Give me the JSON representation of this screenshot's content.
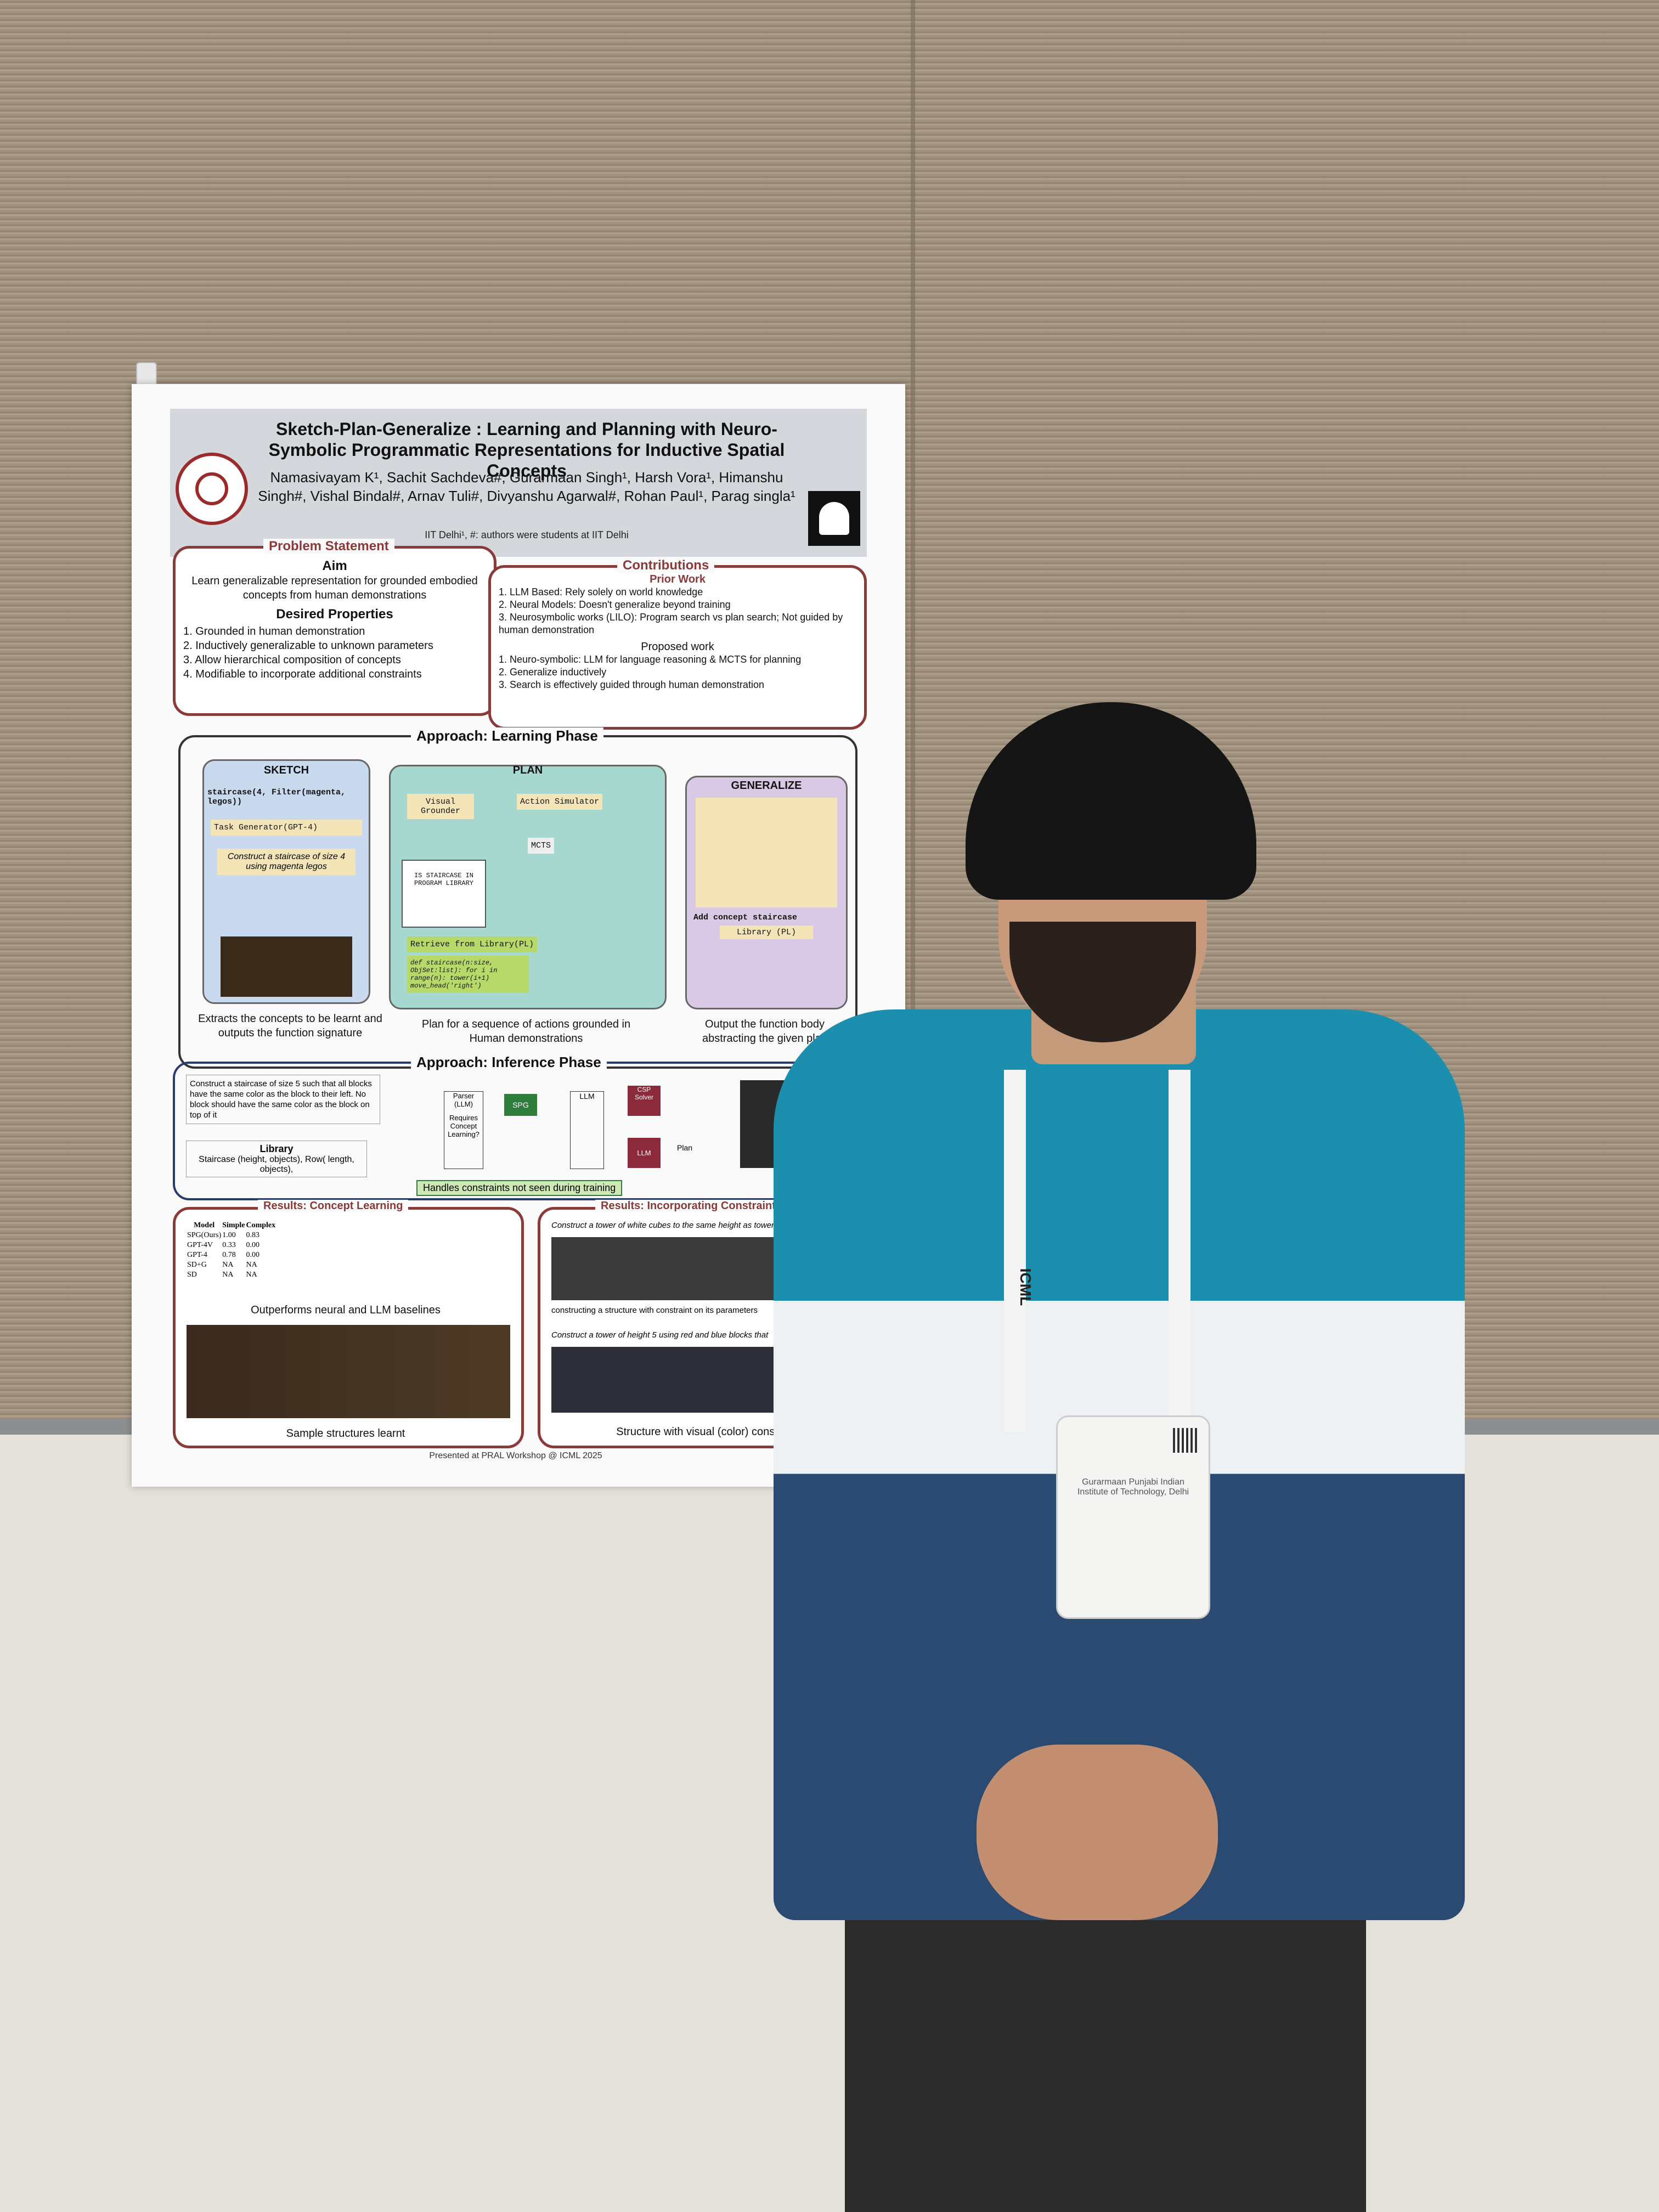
{
  "poster": {
    "title": "Sketch-Plan-Generalize : Learning and Planning with Neuro-Symbolic Programmatic Representations for Inductive Spatial Concepts",
    "authors": "Namasivayam K¹, Sachit Sachdeva#, Gurarmaan Singh¹, Harsh Vora¹, Himanshu Singh#, Vishal Bindal#, Arnav Tuli#, Divyanshu Agarwal#, Rohan Paul¹, Parag singla¹",
    "affiliation": "IIT Delhi¹, #: authors were students at IIT Delhi",
    "problem": {
      "heading": "Problem Statement",
      "aim_title": "Aim",
      "aim_text": "Learn generalizable representation for grounded embodied concepts from human demonstrations",
      "props_title": "Desired Properties",
      "props": [
        "1. Grounded in human demonstration",
        "2. Inductively generalizable to unknown parameters",
        "3. Allow hierarchical composition of concepts",
        "4. Modifiable to incorporate additional constraints"
      ]
    },
    "contributions": {
      "heading": "Contributions",
      "prior_title": "Prior Work",
      "prior": [
        "1. LLM Based: Rely solely on world knowledge",
        "2. Neural Models: Doesn't generalize beyond training",
        "3. Neurosymbolic works (LILO): Program search vs plan search; Not guided by human demonstration"
      ],
      "proposed_title": "Proposed work",
      "proposed": [
        "1. Neuro-symbolic: LLM for language reasoning & MCTS for planning",
        "2. Generalize inductively",
        "3. Search is effectively guided through human demonstration"
      ]
    },
    "learning": {
      "heading": "Approach: Learning Phase",
      "sketch_label": "SKETCH",
      "sketch_code": "staircase(4, Filter(magenta, legos))",
      "task_gen": "Task Generator(GPT-4)",
      "instruction": "Construct a staircase of size 4 using magenta legos",
      "plan_label": "PLAN",
      "visual_grounder": "Visual Grounder",
      "action_sim": "Action Simulator",
      "mcts": "MCTS",
      "is_staircase": "IS STAIRCASE IN PROGRAM LIBRARY",
      "retrieve": "Retrieve from Library(PL)",
      "code": "def staircase(n:size, ObjSet:list): for i in range(n): tower(i+1) move_head('right')",
      "generalize_label": "GENERALIZE",
      "add_concept": "Add concept staircase",
      "library": "Library (PL)",
      "cap_sketch": "Extracts the concepts to be learnt and outputs the function signature",
      "cap_plan": "Plan for a sequence of actions grounded in Human demonstrations",
      "cap_gen": "Output the function body abstracting the given plan"
    },
    "inference": {
      "heading": "Approach: Inference Phase",
      "instruction": "Construct a staircase of size 5 such that all blocks have the same color as the block to their left. No block should have the same color as the block on top of it",
      "library_title": "Library",
      "library_items": "Staircase (height, objects), Row( length, objects),",
      "parser": "Parser (LLM)",
      "requires_concept": "Requires Concept Learning?",
      "spg": "SPG",
      "llm": "LLM",
      "csp": "CSP Solver",
      "plan": "Plan",
      "note": "Handles constraints not seen during training"
    },
    "results_concept": {
      "heading": "Results: Concept Learning",
      "cols": [
        "Model",
        "Simple",
        "Complex"
      ],
      "rows": [
        [
          "SPG(Ours)",
          "1.00",
          "0.83"
        ],
        [
          "GPT-4V",
          "0.33",
          "0.00"
        ],
        [
          "GPT-4",
          "0.78",
          "0.00"
        ],
        [
          "SD+G",
          "NA",
          "NA"
        ],
        [
          "SD",
          "NA",
          "NA"
        ]
      ],
      "caption_top": "Outperforms neural and LLM baselines",
      "caption_bottom": "Sample structures learnt"
    },
    "results_constraints": {
      "heading": "Results: Incorporating Constraints",
      "task1": "Construct a tower of white cubes to the same height as tower of",
      "task1_caption": "constructing a structure with constraint on its parameters",
      "task2": "Construct a tower of height 5 using red and blue blocks that",
      "caption_bottom": "Structure with visual (color) constraints"
    },
    "footer": "Presented at PRAL Workshop @ ICML 2025"
  },
  "badge": {
    "name": "Gurarmaan Punjabi Indian Institute of Technology, Delhi"
  },
  "lanyard_text": "ICML"
}
